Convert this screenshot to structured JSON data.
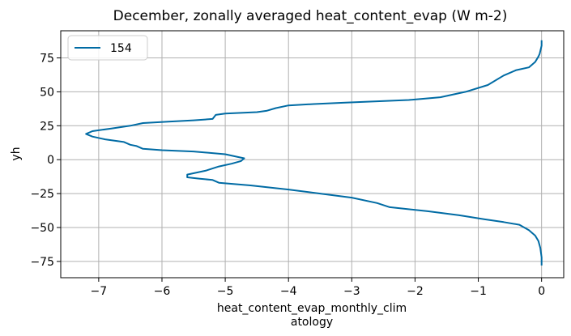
{
  "chart_data": {
    "type": "line",
    "title": "December, zonally averaged heat_content_evap (W m-2)",
    "xlabel_lines": [
      "heat_content_evap_monthly_clim",
      "atology"
    ],
    "ylabel": "yh",
    "xlim": [
      -7.6,
      0.35
    ],
    "ylim": [
      -87,
      95
    ],
    "x_ticks": [
      -7,
      -6,
      -5,
      -4,
      -3,
      -2,
      -1,
      0
    ],
    "x_tick_labels": [
      "−7",
      "−6",
      "−5",
      "−4",
      "−3",
      "−2",
      "−1",
      "0"
    ],
    "y_ticks": [
      -75,
      -50,
      -25,
      0,
      25,
      50,
      75
    ],
    "y_tick_labels": [
      "−75",
      "−50",
      "−25",
      "0",
      "25",
      "50",
      "75"
    ],
    "grid": true,
    "legend_position": "top-left",
    "series": [
      {
        "name": "154",
        "color": "#006ba4",
        "x": [
          0.0,
          0.0,
          -0.02,
          -0.03,
          -0.05,
          -0.1,
          -0.2,
          -0.4,
          -0.6,
          -0.85,
          -1.2,
          -1.6,
          -2.1,
          -2.6,
          -3.1,
          -3.6,
          -4.0,
          -4.2,
          -4.35,
          -4.5,
          -5.0,
          -5.15,
          -5.2,
          -5.5,
          -5.9,
          -6.3,
          -6.5,
          -6.65,
          -6.8,
          -7.1,
          -7.2,
          -7.1,
          -6.9,
          -6.6,
          -6.5,
          -6.4,
          -6.3,
          -6.0,
          -5.5,
          -5.0,
          -4.8,
          -4.7,
          -4.75,
          -4.9,
          -5.1,
          -5.3,
          -5.6,
          -5.6,
          -5.4,
          -5.2,
          -5.1,
          -4.6,
          -4.0,
          -3.5,
          -3.0,
          -2.6,
          -2.4,
          -1.8,
          -1.3,
          -0.9,
          -0.6,
          -0.35,
          -0.2,
          -0.1,
          -0.05,
          -0.02,
          0.0,
          0.0
        ],
        "y": [
          88,
          84,
          80,
          78,
          76,
          72,
          68,
          66,
          62,
          55,
          50,
          46,
          44,
          43,
          42,
          41,
          40,
          38,
          36,
          35,
          34,
          33,
          30,
          29,
          28,
          27,
          25,
          24,
          23,
          21,
          19,
          17,
          15,
          13,
          11,
          10,
          8,
          7,
          6,
          4,
          2,
          1,
          -1,
          -3,
          -5,
          -8,
          -11,
          -13,
          -14,
          -15,
          -17,
          -19,
          -22,
          -25,
          -28,
          -32,
          -35,
          -38,
          -41,
          -44,
          -46,
          -48,
          -52,
          -56,
          -60,
          -65,
          -72,
          -78
        ]
      }
    ]
  }
}
